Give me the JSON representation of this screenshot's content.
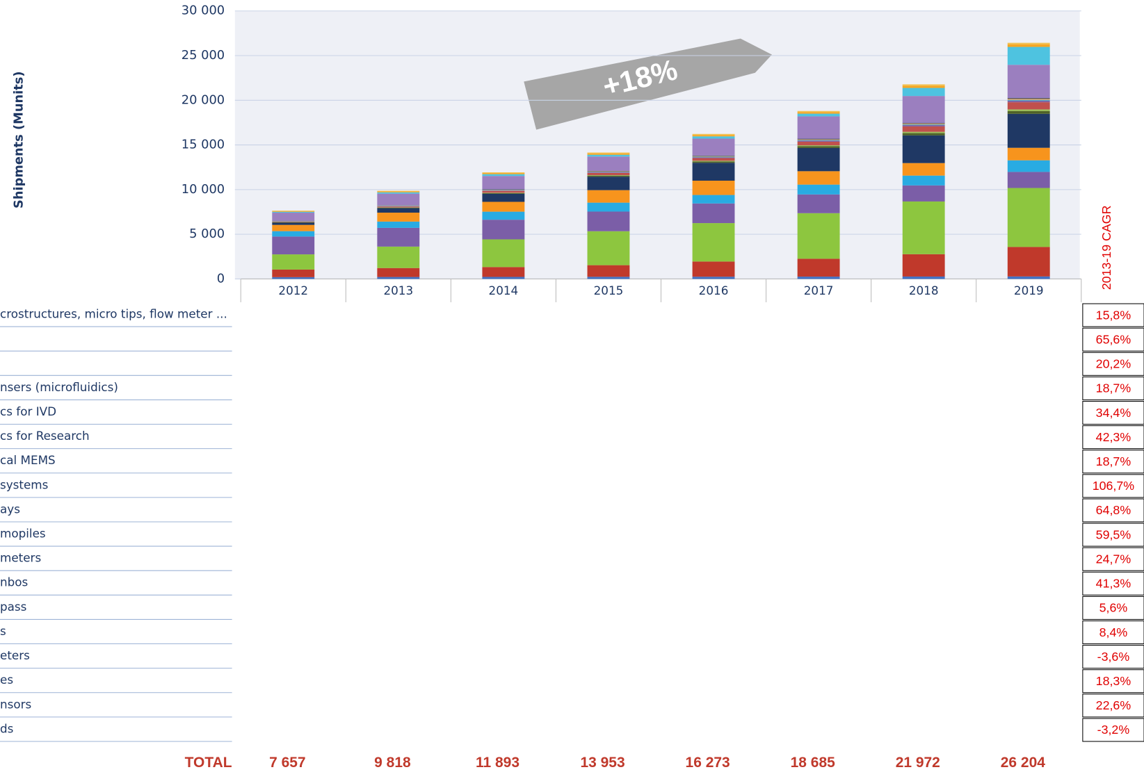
{
  "chart_data": {
    "type": "stacked_bar",
    "y_label": "Shipments (Munits)",
    "annotation": "+18%",
    "categories": [
      "2012",
      "2013",
      "2014",
      "2015",
      "2016",
      "2017",
      "2018",
      "2019"
    ],
    "ylim": [
      0,
      30000
    ],
    "yticks": [
      0,
      {
        "value": 5000,
        "label": "5 000"
      },
      {
        "value": 10000,
        "label": "10 000"
      },
      {
        "value": 15000,
        "label": "15 000"
      },
      {
        "value": 20000,
        "label": "20 000"
      },
      {
        "value": 25000,
        "label": "25 000"
      },
      {
        "value": 30000,
        "label": "30 000"
      }
    ],
    "grid": true,
    "series": [
      {
        "name": "crostructures, micro tips, flow meter ...",
        "color": "#f2c14e",
        "values": [
          50,
          60,
          80,
          100,
          120,
          130,
          150,
          160
        ]
      },
      {
        "name": null,
        "color": "#f5a623",
        "values": [
          80,
          100,
          120,
          150,
          150,
          170,
          250,
          300
        ]
      },
      {
        "name": null,
        "color": "#4ec3e0",
        "values": [
          100,
          150,
          200,
          200,
          250,
          300,
          900,
          2000
        ]
      },
      {
        "name": "nsers (microfluidics)",
        "color": "#9b7fbf",
        "values": [
          900,
          1300,
          1500,
          1600,
          1900,
          2500,
          3000,
          3700
        ]
      },
      {
        "name": "cs for IVD",
        "color": "#2c4d75",
        "values": [
          20,
          30,
          40,
          50,
          60,
          70,
          80,
          90
        ]
      },
      {
        "name": "cs for Research",
        "color": "#f79646",
        "values": [
          20,
          30,
          40,
          50,
          60,
          70,
          90,
          110
        ]
      },
      {
        "name": "cal MEMS",
        "color": "#4bacc6",
        "values": [
          30,
          40,
          50,
          60,
          70,
          80,
          90,
          110
        ]
      },
      {
        "name": "systems",
        "color": "#8064a2",
        "values": [
          30,
          40,
          50,
          70,
          90,
          120,
          150,
          180
        ]
      },
      {
        "name": "ays",
        "color": "#c0504d",
        "values": [
          50,
          100,
          200,
          250,
          300,
          400,
          600,
          800
        ]
      },
      {
        "name": "mopiles",
        "color": "#9bbb59",
        "values": [
          20,
          30,
          40,
          60,
          80,
          100,
          150,
          200
        ]
      },
      {
        "name": "meters",
        "color": "#4f6228",
        "values": [
          50,
          60,
          80,
          120,
          150,
          200,
          250,
          300
        ]
      },
      {
        "name": "nbos",
        "color": "#1f3864",
        "values": [
          250,
          500,
          900,
          1500,
          2000,
          2600,
          3100,
          3800
        ]
      },
      {
        "name": "pass",
        "color": "#f7941d",
        "values": [
          700,
          1000,
          1100,
          1400,
          1600,
          1500,
          1400,
          1400
        ]
      },
      {
        "name": "s",
        "color": "#29abe2",
        "values": [
          600,
          700,
          900,
          1000,
          950,
          1100,
          1100,
          1300
        ]
      },
      {
        "name": "eters",
        "color": "#7b5ea7",
        "values": [
          2000,
          2100,
          2200,
          2200,
          2200,
          2100,
          1800,
          1800
        ]
      },
      {
        "name": "es",
        "color": "#8dc63f",
        "values": [
          1700,
          2400,
          3100,
          3800,
          4300,
          5100,
          5900,
          6600
        ]
      },
      {
        "name": "nsors",
        "color": "#c0392b",
        "values": [
          850,
          1000,
          1100,
          1300,
          1700,
          2000,
          2500,
          3300
        ]
      },
      {
        "name": "ds",
        "color": "#4472c4",
        "values": [
          200,
          220,
          230,
          240,
          250,
          260,
          270,
          280
        ]
      }
    ],
    "cagr": {
      "label": "2013-19 CAGR",
      "values": [
        15.8,
        65.6,
        20.2,
        18.7,
        34.4,
        42.3,
        18.7,
        106.7,
        64.8,
        59.5,
        24.7,
        41.3,
        5.6,
        8.4,
        -3.6,
        18.3,
        22.6,
        -3.2
      ],
      "value_labels": [
        "15,8%",
        "65,6%",
        "20,2%",
        "18,7%",
        "34,4%",
        "42,3%",
        "18,7%",
        "106,7%",
        "64,8%",
        "59,5%",
        "24,7%",
        "41,3%",
        "5,6%",
        "8,4%",
        "-3,6%",
        "18,3%",
        "22,6%",
        "-3,2%"
      ]
    },
    "totals": {
      "label": "TOTAL",
      "values": [
        7657,
        9818,
        11893,
        13953,
        16273,
        18685,
        21972,
        26204
      ],
      "value_labels": [
        "7 657",
        "9 818",
        "11 893",
        "13 953",
        "16 273",
        "18 685",
        "21 972",
        "26 204"
      ]
    }
  }
}
